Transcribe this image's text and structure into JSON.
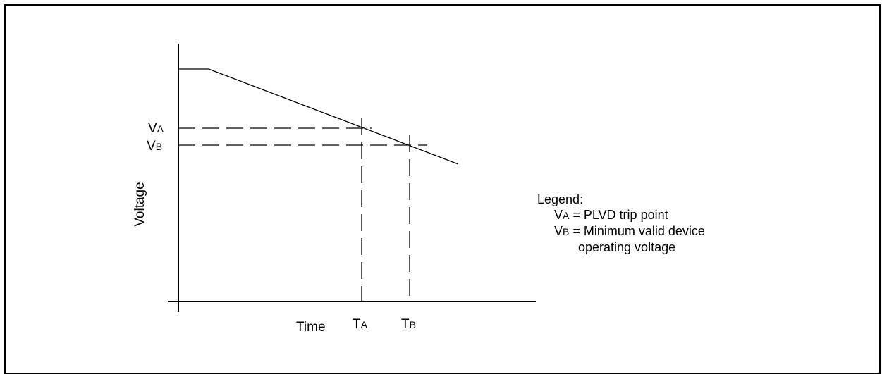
{
  "diagram": {
    "axes": {
      "y_label": "Voltage",
      "x_label": "Time"
    },
    "markers": {
      "va_main": "V",
      "va_sub": "A",
      "vb_main": "V",
      "vb_sub": "B",
      "ta_main": "T",
      "ta_sub": "A",
      "tb_main": "T",
      "tb_sub": "B"
    },
    "legend": {
      "title": "Legend:",
      "va_main": "V",
      "va_sub": "A",
      "va_text": " = PLVD trip point",
      "vb_main": "V",
      "vb_sub": "B",
      "vb_text": " = Minimum valid device",
      "vb_text_cont": "operating voltage"
    }
  }
}
